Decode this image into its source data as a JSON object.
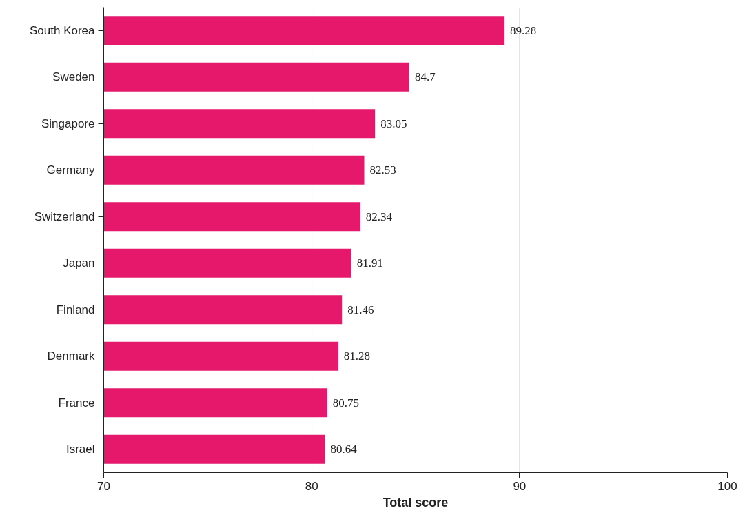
{
  "chart_data": {
    "type": "bar",
    "orientation": "horizontal",
    "xlabel": "Total score",
    "categories": [
      "South Korea",
      "Sweden",
      "Singapore",
      "Germany",
      "Switzerland",
      "Japan",
      "Finland",
      "Denmark",
      "France",
      "Israel"
    ],
    "values": [
      89.28,
      84.7,
      83.05,
      82.53,
      82.34,
      81.91,
      81.46,
      81.28,
      80.75,
      80.64
    ],
    "color": "#e5186b",
    "xlim": [
      70,
      100
    ],
    "xticks": [
      70,
      80,
      90,
      100
    ],
    "grid": "x",
    "data_labels": true
  }
}
